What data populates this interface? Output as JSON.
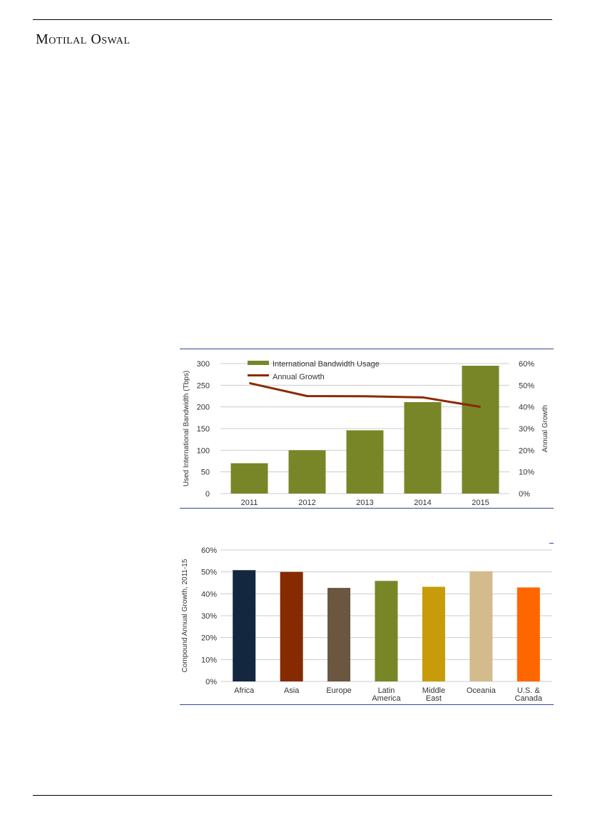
{
  "header": {
    "brand": "Motilal Oswal"
  },
  "colors": {
    "frame_line": "#35469a",
    "grid_line": "#cccccc"
  },
  "chart_data": [
    {
      "type": "bar",
      "categories": [
        "2011",
        "2012",
        "2013",
        "2014",
        "2015"
      ],
      "ylabel": "Used International Bandwidth (Tbps)",
      "y2label": "Annual Growth",
      "ylim": [
        0,
        300
      ],
      "y_ticks": [
        "0",
        "50",
        "100",
        "150",
        "200",
        "250",
        "300"
      ],
      "y2lim": [
        0,
        0.6
      ],
      "y2_ticks": [
        "0%",
        "10%",
        "20%",
        "30%",
        "40%",
        "50%",
        "60%"
      ],
      "legend_position": "top-left",
      "grid": true,
      "series": [
        {
          "name": "International Bandwidth Usage",
          "kind": "bar",
          "axis": "left",
          "color": "#788628",
          "values": [
            70,
            100,
            146,
            211,
            295
          ]
        },
        {
          "name": "Annual Growth",
          "kind": "line",
          "axis": "right",
          "color": "#8b2a00",
          "values": [
            0.51,
            0.45,
            0.449,
            0.444,
            0.4
          ]
        }
      ]
    },
    {
      "type": "bar",
      "categories": [
        "Africa",
        "Asia",
        "Europe",
        "Latin America",
        "Middle East",
        "Oceania",
        "U.S. & Canada"
      ],
      "category_lines": [
        [
          "Africa"
        ],
        [
          "Asia"
        ],
        [
          "Europe"
        ],
        [
          "Latin",
          "America"
        ],
        [
          "Middle",
          "East"
        ],
        [
          "Oceania"
        ],
        [
          "U.S. &",
          "Canada"
        ]
      ],
      "values": [
        0.508,
        0.5,
        0.427,
        0.459,
        0.432,
        0.503,
        0.429
      ],
      "colors": [
        "#13273f",
        "#862a02",
        "#6b5641",
        "#788628",
        "#c79b09",
        "#d3bb8d",
        "#ff6600"
      ],
      "ylabel": "Compound Annual Growth, 2011-15",
      "ylim": [
        0,
        0.6
      ],
      "y_ticks": [
        "0%",
        "10%",
        "20%",
        "30%",
        "40%",
        "50%",
        "60%"
      ],
      "grid": true
    }
  ]
}
